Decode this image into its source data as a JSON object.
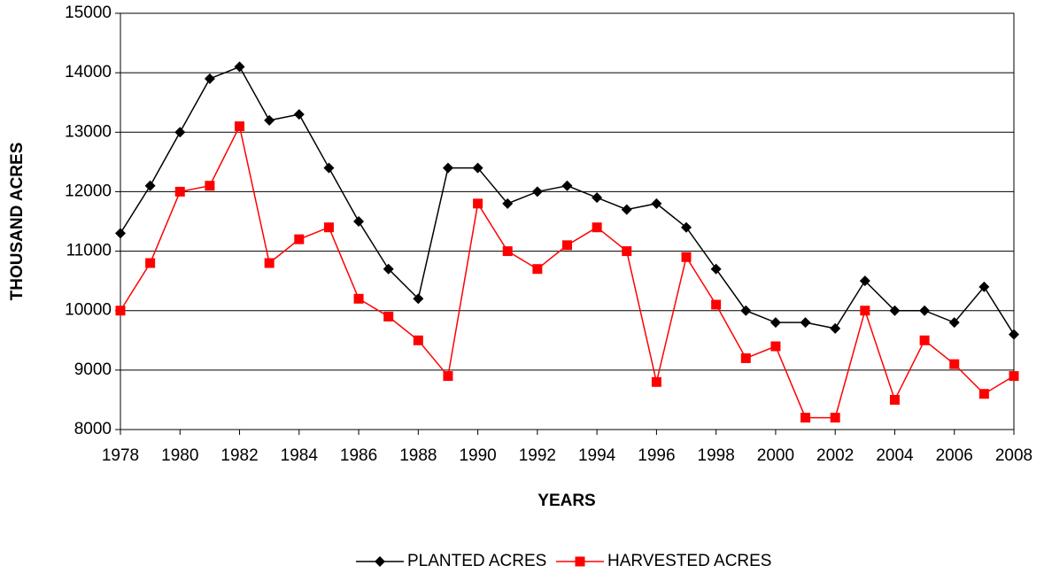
{
  "chart_data": {
    "type": "line",
    "x_label": "YEARS",
    "y_label": "THOUSAND ACRES",
    "x": [
      1978,
      1979,
      1980,
      1981,
      1982,
      1983,
      1984,
      1985,
      1986,
      1987,
      1988,
      1989,
      1990,
      1991,
      1992,
      1993,
      1994,
      1995,
      1996,
      1997,
      1998,
      1999,
      2000,
      2001,
      2002,
      2003,
      2004,
      2005,
      2006,
      2007,
      2008
    ],
    "series": [
      {
        "name": "PLANTED ACRES",
        "color": "#000000",
        "marker": "diamond",
        "values": [
          11300,
          12100,
          13000,
          13900,
          14100,
          13200,
          13300,
          12400,
          11500,
          10700,
          10200,
          12400,
          12400,
          11800,
          12000,
          12100,
          11900,
          11700,
          11800,
          11400,
          10700,
          10000,
          9800,
          9800,
          9700,
          10500,
          10000,
          10000,
          9800,
          10400,
          9600
        ]
      },
      {
        "name": "HARVESTED ACRES",
        "color": "#ff0000",
        "marker": "square",
        "values": [
          10000,
          10800,
          12000,
          12100,
          13100,
          10800,
          11200,
          11400,
          10200,
          9900,
          9500,
          8900,
          11800,
          11000,
          10700,
          11100,
          11400,
          11000,
          8800,
          10900,
          10100,
          9200,
          9400,
          8200,
          8200,
          10000,
          8500,
          9500,
          9100,
          8600,
          8900
        ]
      }
    ],
    "xlim": [
      1978,
      2008
    ],
    "xticks": [
      1978,
      1980,
      1982,
      1984,
      1986,
      1988,
      1990,
      1992,
      1994,
      1996,
      1998,
      2000,
      2002,
      2004,
      2006,
      2008
    ],
    "ylim": [
      8000,
      15000
    ],
    "yticks": [
      8000,
      9000,
      10000,
      11000,
      12000,
      13000,
      14000,
      15000
    ],
    "grid": true,
    "legend": "bottom"
  }
}
